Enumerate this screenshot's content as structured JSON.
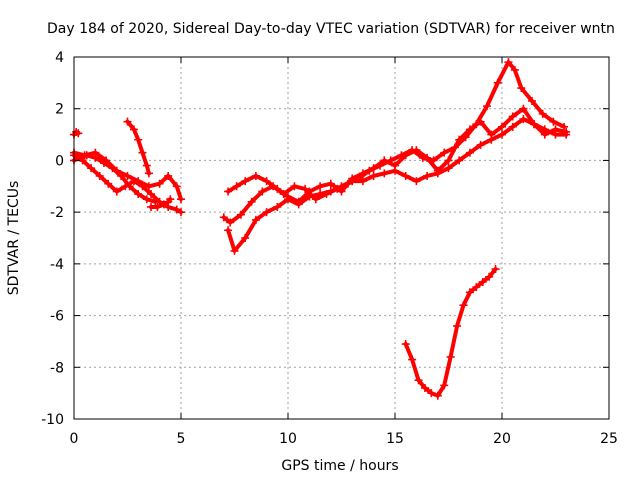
{
  "chart_data": {
    "type": "scatter",
    "title": "Day 184 of 2020, Sidereal Day-to-day VTEC variation (SDTVAR) for receiver wntn",
    "xlabel": "GPS time / hours",
    "ylabel": "SDTVAR / TECUs",
    "xlim": [
      0,
      25
    ],
    "ylim": [
      -10,
      4
    ],
    "xticks": [
      0,
      5,
      10,
      15,
      20,
      25
    ],
    "xtick_labels": [
      "0",
      "5",
      "10",
      "15",
      "20",
      "25"
    ],
    "yticks": [
      -10,
      -8,
      -6,
      -4,
      -2,
      0,
      2,
      4
    ],
    "ytick_labels": [
      "-10",
      "-8",
      "-6",
      "-4",
      "-2",
      "0",
      "2",
      "4"
    ],
    "grid": true,
    "marker": "+",
    "series": [
      {
        "name": "trace-a",
        "color": "#ff0000",
        "x": [
          0.0,
          0.4,
          0.8,
          1.2,
          1.6,
          2.0,
          2.4,
          2.8,
          3.2,
          3.6,
          4.0,
          4.4,
          4.8,
          5.0
        ],
        "y": [
          0.2,
          0.0,
          -0.3,
          -0.6,
          -0.9,
          -1.2,
          -1.0,
          -0.8,
          -1.0,
          -1.3,
          -1.6,
          -1.8,
          -1.9,
          -2.0
        ]
      },
      {
        "name": "trace-b",
        "color": "#ff0000",
        "x": [
          0.0,
          0.5,
          1.0,
          1.5,
          2.0,
          2.5,
          3.0,
          3.5,
          4.0,
          4.4,
          4.8,
          5.0
        ],
        "y": [
          0.3,
          0.2,
          0.3,
          0.0,
          -0.4,
          -0.6,
          -0.8,
          -1.0,
          -0.9,
          -0.6,
          -1.0,
          -1.5
        ]
      },
      {
        "name": "trace-c",
        "color": "#ff0000",
        "x": [
          0.0,
          0.3,
          0.6,
          1.0,
          1.4,
          1.8,
          2.2,
          2.6,
          3.0,
          3.4,
          3.8
        ],
        "y": [
          0.0,
          0.1,
          0.2,
          0.1,
          -0.1,
          -0.3,
          -0.6,
          -1.0,
          -1.3,
          -1.5,
          -1.6
        ]
      },
      {
        "name": "trace-d",
        "color": "#ff0000",
        "x": [
          0.0,
          0.1,
          0.2
        ],
        "y": [
          1.0,
          1.1,
          1.05
        ]
      },
      {
        "name": "trace-e",
        "color": "#ff0000",
        "x": [
          2.5,
          2.8,
          3.0,
          3.2,
          3.4,
          3.5
        ],
        "y": [
          1.5,
          1.2,
          0.8,
          0.3,
          -0.2,
          -0.5
        ]
      },
      {
        "name": "trace-f",
        "color": "#ff0000",
        "x": [
          3.6,
          3.9,
          4.2,
          4.4,
          4.5
        ],
        "y": [
          -1.8,
          -1.8,
          -1.7,
          -1.6,
          -1.5
        ]
      },
      {
        "name": "trace-g",
        "color": "#ff0000",
        "x": [
          7.2,
          7.5,
          8.0,
          8.5,
          9.0,
          9.5,
          10.0,
          10.5,
          11.0,
          11.5,
          12.0,
          12.5,
          13.0,
          13.5,
          14.0,
          14.5,
          15.0,
          15.5,
          16.0,
          16.5,
          17.0,
          17.5,
          18.0,
          18.5,
          19.0,
          19.5,
          20.0,
          20.5,
          21.0,
          21.5,
          22.0,
          22.5,
          23.0
        ],
        "y": [
          -2.7,
          -3.5,
          -3.0,
          -2.3,
          -2.0,
          -1.8,
          -1.5,
          -1.7,
          -1.4,
          -1.3,
          -1.2,
          -1.0,
          -0.8,
          -0.8,
          -0.6,
          -0.5,
          -0.4,
          -0.6,
          -0.8,
          -0.6,
          -0.5,
          -0.3,
          0.0,
          0.3,
          0.6,
          0.8,
          1.0,
          1.3,
          1.6,
          1.4,
          1.2,
          1.0,
          1.0
        ]
      },
      {
        "name": "trace-h",
        "color": "#ff0000",
        "x": [
          7.0,
          7.3,
          7.8,
          8.3,
          8.8,
          9.3,
          9.8,
          10.3,
          10.8,
          11.3,
          11.8,
          12.3,
          12.8,
          13.3,
          13.8,
          14.3,
          14.8,
          15.3,
          15.8,
          16.3,
          16.8,
          17.3,
          17.8,
          18.3,
          18.8,
          19.3,
          19.8,
          20.3,
          20.6,
          20.9,
          21.4,
          21.9,
          22.4,
          22.9
        ],
        "y": [
          -2.2,
          -2.4,
          -2.1,
          -1.6,
          -1.2,
          -1.0,
          -1.3,
          -1.0,
          -1.1,
          -1.5,
          -1.3,
          -1.1,
          -0.9,
          -0.7,
          -0.4,
          -0.2,
          0.0,
          0.2,
          0.4,
          0.1,
          0.0,
          0.3,
          0.5,
          0.9,
          1.4,
          2.1,
          3.0,
          3.8,
          3.5,
          2.8,
          2.3,
          1.8,
          1.5,
          1.3
        ]
      },
      {
        "name": "trace-i",
        "color": "#ff0000",
        "x": [
          7.2,
          7.6,
          8.0,
          8.5,
          9.0,
          9.5,
          10.0,
          10.5,
          11.0,
          11.5,
          12.0,
          12.5,
          13.0,
          13.5,
          14.0,
          14.5,
          15.0,
          15.5,
          16.0,
          16.5,
          17.0,
          17.5,
          18.0,
          18.5,
          19.0,
          19.5,
          20.0,
          20.5,
          21.0,
          21.5,
          22.0,
          22.5,
          23.0
        ],
        "y": [
          -1.2,
          -1.0,
          -0.8,
          -0.6,
          -0.8,
          -1.1,
          -1.4,
          -1.6,
          -1.2,
          -1.0,
          -0.9,
          -1.2,
          -0.7,
          -0.5,
          -0.3,
          0.0,
          -0.2,
          0.2,
          0.4,
          0.1,
          -0.4,
          0.0,
          0.8,
          1.2,
          1.5,
          1.0,
          1.3,
          1.7,
          2.0,
          1.4,
          1.0,
          1.2,
          1.1
        ]
      },
      {
        "name": "trace-j",
        "color": "#ff0000",
        "x": [
          15.5,
          15.8,
          16.1,
          16.4,
          16.7,
          17.0,
          17.3,
          17.6,
          17.9,
          18.2,
          18.5,
          18.8,
          19.1,
          19.4,
          19.7
        ],
        "y": [
          -7.1,
          -7.7,
          -8.5,
          -8.8,
          -9.0,
          -9.1,
          -8.7,
          -7.6,
          -6.4,
          -5.6,
          -5.1,
          -4.9,
          -4.7,
          -4.5,
          -4.2
        ]
      }
    ]
  }
}
